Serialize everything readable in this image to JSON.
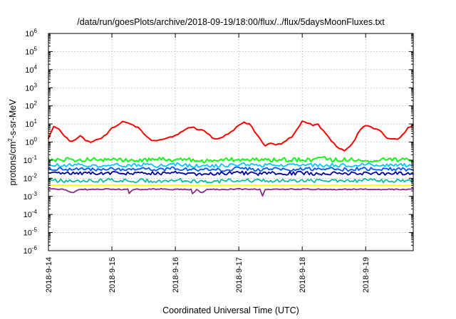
{
  "chart_data": {
    "type": "line",
    "title": "/data/run/goesPlots/archive/2018-09-19/18:00/flux/../flux/5daysMoonFluxes.txt",
    "xlabel": "Coordinated Universal Time (UTC)",
    "ylabel": {
      "prefix": "protons/cm",
      "superscript": "2",
      "suffix": "-s-sr-MeV"
    },
    "x_scale": "time",
    "x_range": [
      "2018-09-14T00:00",
      "2018-09-19T18:00"
    ],
    "x_ticks": [
      "2018-9-14",
      "2018-9-15",
      "2018-9-16",
      "2018-9-17",
      "2018-9-18",
      "2018-9-19"
    ],
    "x_tick_dates": [
      "2018-09-14",
      "2018-09-15",
      "2018-09-16",
      "2018-09-17",
      "2018-09-18",
      "2018-09-19"
    ],
    "y_scale": "log",
    "y_range": [
      1e-06,
      1000000.0
    ],
    "y_tick_exponents": [
      -6,
      -5,
      -4,
      -3,
      -2,
      -1,
      0,
      1,
      2,
      3,
      4,
      5,
      6
    ],
    "y_tick_base": "10",
    "grid": true,
    "legend": "none",
    "series": [
      {
        "color": "#ff0000",
        "points": [
          [
            "2018-09-14T00:00",
            1.6
          ],
          [
            "2018-09-14T02:00",
            7
          ],
          [
            "2018-09-14T04:00",
            5
          ],
          [
            "2018-09-14T06:00",
            2.2
          ],
          [
            "2018-09-14T08:00",
            1.1
          ],
          [
            "2018-09-14T10:00",
            1.3
          ],
          [
            "2018-09-14T12:00",
            2.4
          ],
          [
            "2018-09-14T14:00",
            1.2
          ],
          [
            "2018-09-14T16:00",
            1.0
          ],
          [
            "2018-09-14T18:00",
            1.4
          ],
          [
            "2018-09-14T20:00",
            1.6
          ],
          [
            "2018-09-14T22:00",
            2.8
          ],
          [
            "2018-09-15T00:00",
            6
          ],
          [
            "2018-09-15T02:00",
            9
          ],
          [
            "2018-09-15T04:00",
            13
          ],
          [
            "2018-09-15T06:00",
            11
          ],
          [
            "2018-09-15T08:00",
            9
          ],
          [
            "2018-09-15T10:00",
            6
          ],
          [
            "2018-09-15T12:00",
            3
          ],
          [
            "2018-09-15T14:00",
            1.6
          ],
          [
            "2018-09-15T16:00",
            1.1
          ],
          [
            "2018-09-15T18:00",
            1.2
          ],
          [
            "2018-09-15T20:00",
            1.5
          ],
          [
            "2018-09-15T22:00",
            1.8
          ],
          [
            "2018-09-16T00:00",
            2.2
          ],
          [
            "2018-09-16T02:00",
            3.5
          ],
          [
            "2018-09-16T04:00",
            5
          ],
          [
            "2018-09-16T06:00",
            7
          ],
          [
            "2018-09-16T08:00",
            5.5
          ],
          [
            "2018-09-16T10:00",
            4.8
          ],
          [
            "2018-09-16T12:00",
            3
          ],
          [
            "2018-09-16T14:00",
            1.8
          ],
          [
            "2018-09-16T16:00",
            1.5
          ],
          [
            "2018-09-16T18:00",
            2
          ],
          [
            "2018-09-16T20:00",
            2.6
          ],
          [
            "2018-09-16T22:00",
            4.5
          ],
          [
            "2018-09-17T00:00",
            9
          ],
          [
            "2018-09-17T02:00",
            12
          ],
          [
            "2018-09-17T04:00",
            10
          ],
          [
            "2018-09-17T06:00",
            4
          ],
          [
            "2018-09-17T08:00",
            1.5
          ],
          [
            "2018-09-17T10:00",
            0.6
          ],
          [
            "2018-09-17T12:00",
            0.9
          ],
          [
            "2018-09-17T14:00",
            0.7
          ],
          [
            "2018-09-17T16:00",
            0.8
          ],
          [
            "2018-09-17T18:00",
            1.2
          ],
          [
            "2018-09-17T20:00",
            2
          ],
          [
            "2018-09-17T22:00",
            5
          ],
          [
            "2018-09-18T00:00",
            14
          ],
          [
            "2018-09-18T02:00",
            12
          ],
          [
            "2018-09-18T04:00",
            8
          ],
          [
            "2018-09-18T06:00",
            9
          ],
          [
            "2018-09-18T08:00",
            4.5
          ],
          [
            "2018-09-18T10:00",
            1.8
          ],
          [
            "2018-09-18T12:00",
            0.8
          ],
          [
            "2018-09-18T14:00",
            0.4
          ],
          [
            "2018-09-18T16:00",
            0.35
          ],
          [
            "2018-09-18T18:00",
            0.6
          ],
          [
            "2018-09-18T20:00",
            1.5
          ],
          [
            "2018-09-18T22:00",
            5
          ],
          [
            "2018-09-19T00:00",
            8
          ],
          [
            "2018-09-19T02:00",
            7
          ],
          [
            "2018-09-19T04:00",
            5
          ],
          [
            "2018-09-19T06:00",
            4
          ],
          [
            "2018-09-19T08:00",
            1.6
          ],
          [
            "2018-09-19T10:00",
            1.5
          ],
          [
            "2018-09-19T12:00",
            1.3
          ],
          [
            "2018-09-19T14:00",
            2.5
          ],
          [
            "2018-09-19T16:00",
            6
          ],
          [
            "2018-09-19T18:00",
            9
          ]
        ]
      },
      {
        "color": "#00ff00",
        "points": [
          [
            "2018-09-14T00:00",
            0.12
          ],
          [
            "2018-09-14T04:00",
            0.1
          ],
          [
            "2018-09-14T08:00",
            0.11
          ],
          [
            "2018-09-14T12:00",
            0.1
          ],
          [
            "2018-09-14T16:00",
            0.12
          ],
          [
            "2018-09-14T20:00",
            0.1
          ],
          [
            "2018-09-15T00:00",
            0.11
          ],
          [
            "2018-09-15T04:00",
            0.1
          ],
          [
            "2018-09-15T08:00",
            0.1
          ],
          [
            "2018-09-15T12:00",
            0.11
          ],
          [
            "2018-09-15T16:00",
            0.1
          ],
          [
            "2018-09-15T20:00",
            0.12
          ],
          [
            "2018-09-16T00:00",
            0.1
          ],
          [
            "2018-09-16T04:00",
            0.11
          ],
          [
            "2018-09-16T08:00",
            0.1
          ],
          [
            "2018-09-16T12:00",
            0.09
          ],
          [
            "2018-09-16T16:00",
            0.11
          ],
          [
            "2018-09-16T20:00",
            0.1
          ],
          [
            "2018-09-17T00:00",
            0.12
          ],
          [
            "2018-09-17T04:00",
            0.1
          ],
          [
            "2018-09-17T08:00",
            0.11
          ],
          [
            "2018-09-17T12:00",
            0.1
          ],
          [
            "2018-09-17T16:00",
            0.12
          ],
          [
            "2018-09-17T20:00",
            0.1
          ],
          [
            "2018-09-18T00:00",
            0.11
          ],
          [
            "2018-09-18T04:00",
            0.1
          ],
          [
            "2018-09-18T08:00",
            0.12
          ],
          [
            "2018-09-18T12:00",
            0.1
          ],
          [
            "2018-09-18T16:00",
            0.11
          ],
          [
            "2018-09-18T20:00",
            0.1
          ],
          [
            "2018-09-19T00:00",
            0.11
          ],
          [
            "2018-09-19T04:00",
            0.1
          ],
          [
            "2018-09-19T08:00",
            0.12
          ],
          [
            "2018-09-19T12:00",
            0.1
          ],
          [
            "2018-09-19T18:00",
            0.11
          ]
        ]
      },
      {
        "color": "#00c8ff",
        "points": [
          [
            "2018-09-14T00:00",
            0.06
          ],
          [
            "2018-09-14T06:00",
            0.05
          ],
          [
            "2018-09-14T12:00",
            0.055
          ],
          [
            "2018-09-14T18:00",
            0.05
          ],
          [
            "2018-09-15T00:00",
            0.06
          ],
          [
            "2018-09-15T06:00",
            0.05
          ],
          [
            "2018-09-15T12:00",
            0.055
          ],
          [
            "2018-09-15T18:00",
            0.05
          ],
          [
            "2018-09-16T00:00",
            0.06
          ],
          [
            "2018-09-16T06:00",
            0.05
          ],
          [
            "2018-09-16T12:00",
            0.045
          ],
          [
            "2018-09-16T18:00",
            0.05
          ],
          [
            "2018-09-17T00:00",
            0.06
          ],
          [
            "2018-09-17T06:00",
            0.05
          ],
          [
            "2018-09-17T12:00",
            0.055
          ],
          [
            "2018-09-17T18:00",
            0.05
          ],
          [
            "2018-09-18T00:00",
            0.06
          ],
          [
            "2018-09-18T06:00",
            0.05
          ],
          [
            "2018-09-18T12:00",
            0.055
          ],
          [
            "2018-09-18T18:00",
            0.05
          ],
          [
            "2018-09-19T00:00",
            0.06
          ],
          [
            "2018-09-19T06:00",
            0.05
          ],
          [
            "2018-09-19T12:00",
            0.055
          ],
          [
            "2018-09-19T18:00",
            0.05
          ]
        ]
      },
      {
        "color": "#0055ff",
        "points": [
          [
            "2018-09-14T00:00",
            0.035
          ],
          [
            "2018-09-14T06:00",
            0.03
          ],
          [
            "2018-09-14T12:00",
            0.033
          ],
          [
            "2018-09-14T18:00",
            0.03
          ],
          [
            "2018-09-15T00:00",
            0.035
          ],
          [
            "2018-09-15T06:00",
            0.03
          ],
          [
            "2018-09-15T12:00",
            0.033
          ],
          [
            "2018-09-15T18:00",
            0.03
          ],
          [
            "2018-09-16T00:00",
            0.035
          ],
          [
            "2018-09-16T06:00",
            0.03
          ],
          [
            "2018-09-16T12:00",
            0.028
          ],
          [
            "2018-09-16T18:00",
            0.03
          ],
          [
            "2018-09-17T00:00",
            0.035
          ],
          [
            "2018-09-17T06:00",
            0.03
          ],
          [
            "2018-09-17T12:00",
            0.033
          ],
          [
            "2018-09-17T18:00",
            0.03
          ],
          [
            "2018-09-18T00:00",
            0.035
          ],
          [
            "2018-09-18T06:00",
            0.03
          ],
          [
            "2018-09-18T12:00",
            0.033
          ],
          [
            "2018-09-18T18:00",
            0.03
          ],
          [
            "2018-09-19T00:00",
            0.035
          ],
          [
            "2018-09-19T06:00",
            0.03
          ],
          [
            "2018-09-19T12:00",
            0.033
          ],
          [
            "2018-09-19T18:00",
            0.03
          ]
        ]
      },
      {
        "color": "#0000a0",
        "points": [
          [
            "2018-09-14T00:00",
            0.02
          ],
          [
            "2018-09-14T06:00",
            0.018
          ],
          [
            "2018-09-14T12:00",
            0.019
          ],
          [
            "2018-09-14T18:00",
            0.018
          ],
          [
            "2018-09-15T00:00",
            0.02
          ],
          [
            "2018-09-15T06:00",
            0.018
          ],
          [
            "2018-09-15T12:00",
            0.019
          ],
          [
            "2018-09-15T18:00",
            0.018
          ],
          [
            "2018-09-16T00:00",
            0.02
          ],
          [
            "2018-09-16T06:00",
            0.018
          ],
          [
            "2018-09-16T12:00",
            0.017
          ],
          [
            "2018-09-16T18:00",
            0.018
          ],
          [
            "2018-09-17T00:00",
            0.02
          ],
          [
            "2018-09-17T06:00",
            0.018
          ],
          [
            "2018-09-17T12:00",
            0.019
          ],
          [
            "2018-09-17T18:00",
            0.018
          ],
          [
            "2018-09-18T00:00",
            0.02
          ],
          [
            "2018-09-18T06:00",
            0.018
          ],
          [
            "2018-09-18T12:00",
            0.019
          ],
          [
            "2018-09-18T18:00",
            0.018
          ],
          [
            "2018-09-19T00:00",
            0.02
          ],
          [
            "2018-09-19T06:00",
            0.018
          ],
          [
            "2018-09-19T12:00",
            0.019
          ],
          [
            "2018-09-19T18:00",
            0.018
          ]
        ]
      },
      {
        "color": "#00c0a0",
        "points": [
          [
            "2018-09-14T00:00",
            0.008
          ],
          [
            "2018-09-14T06:00",
            0.007
          ],
          [
            "2018-09-14T12:00",
            0.0075
          ],
          [
            "2018-09-14T18:00",
            0.007
          ],
          [
            "2018-09-15T00:00",
            0.008
          ],
          [
            "2018-09-15T06:00",
            0.007
          ],
          [
            "2018-09-15T12:00",
            0.0075
          ],
          [
            "2018-09-15T18:00",
            0.007
          ],
          [
            "2018-09-16T00:00",
            0.008
          ],
          [
            "2018-09-16T06:00",
            0.007
          ],
          [
            "2018-09-16T12:00",
            0.0065
          ],
          [
            "2018-09-16T18:00",
            0.007
          ],
          [
            "2018-09-17T00:00",
            0.008
          ],
          [
            "2018-09-17T06:00",
            0.007
          ],
          [
            "2018-09-17T12:00",
            0.0075
          ],
          [
            "2018-09-17T18:00",
            0.007
          ],
          [
            "2018-09-18T00:00",
            0.008
          ],
          [
            "2018-09-18T06:00",
            0.007
          ],
          [
            "2018-09-18T12:00",
            0.0075
          ],
          [
            "2018-09-18T18:00",
            0.007
          ],
          [
            "2018-09-19T00:00",
            0.008
          ],
          [
            "2018-09-19T06:00",
            0.007
          ],
          [
            "2018-09-19T12:00",
            0.0075
          ],
          [
            "2018-09-19T18:00",
            0.007
          ]
        ]
      },
      {
        "color": "#ffff00",
        "points": [
          [
            "2018-09-14T00:00",
            0.0042
          ],
          [
            "2018-09-14T12:00",
            0.004
          ],
          [
            "2018-09-15T00:00",
            0.0042
          ],
          [
            "2018-09-15T12:00",
            0.004
          ],
          [
            "2018-09-16T00:00",
            0.0042
          ],
          [
            "2018-09-16T12:00",
            0.0039
          ],
          [
            "2018-09-17T00:00",
            0.0042
          ],
          [
            "2018-09-17T12:00",
            0.004
          ],
          [
            "2018-09-18T00:00",
            0.0042
          ],
          [
            "2018-09-18T12:00",
            0.004
          ],
          [
            "2018-09-19T00:00",
            0.0042
          ],
          [
            "2018-09-19T18:00",
            0.004
          ]
        ]
      },
      {
        "color": "#8b2a8b",
        "points": [
          [
            "2018-09-14T00:00",
            0.0025
          ],
          [
            "2018-09-14T06:00",
            0.0024
          ],
          [
            "2018-09-14T09:00",
            0.0016
          ],
          [
            "2018-09-14T12:00",
            0.0024
          ],
          [
            "2018-09-15T00:00",
            0.0025
          ],
          [
            "2018-09-15T06:00",
            0.0024
          ],
          [
            "2018-09-15T06:30",
            0.0015
          ],
          [
            "2018-09-15T08:00",
            0.0024
          ],
          [
            "2018-09-15T18:00",
            0.0025
          ],
          [
            "2018-09-16T06:00",
            0.0024
          ],
          [
            "2018-09-16T06:30",
            0.0014
          ],
          [
            "2018-09-16T08:00",
            0.0024
          ],
          [
            "2018-09-16T10:00",
            0.0016
          ],
          [
            "2018-09-16T12:00",
            0.0024
          ],
          [
            "2018-09-17T00:00",
            0.0025
          ],
          [
            "2018-09-17T08:00",
            0.0024
          ],
          [
            "2018-09-17T09:00",
            0.0011
          ],
          [
            "2018-09-17T10:00",
            0.0024
          ],
          [
            "2018-09-18T00:00",
            0.0025
          ],
          [
            "2018-09-18T12:00",
            0.0024
          ],
          [
            "2018-09-19T00:00",
            0.0025
          ],
          [
            "2018-09-19T12:00",
            0.0024
          ],
          [
            "2018-09-19T18:00",
            0.0025
          ]
        ]
      }
    ]
  }
}
